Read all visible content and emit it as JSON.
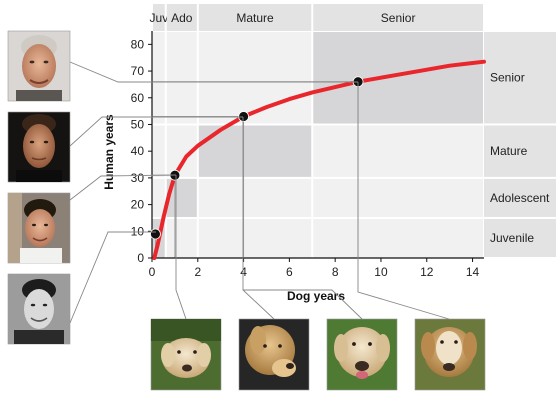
{
  "chart_data": {
    "type": "line",
    "xlabel": "Dog years",
    "ylabel": "Human years",
    "xlim": [
      0,
      14.5
    ],
    "ylim": [
      0,
      85
    ],
    "xticks": [
      0,
      2,
      4,
      6,
      8,
      10,
      12,
      14
    ],
    "yticks": [
      0,
      10,
      20,
      30,
      40,
      50,
      60,
      70,
      80
    ],
    "series": [
      {
        "color": "#e8262b",
        "points": [
          {
            "x": 0.1,
            "y": 0
          },
          {
            "x": 0.25,
            "y": 5
          },
          {
            "x": 0.5,
            "y": 15
          },
          {
            "x": 0.75,
            "y": 24
          },
          {
            "x": 1,
            "y": 31
          },
          {
            "x": 1.5,
            "y": 38
          },
          {
            "x": 2,
            "y": 42
          },
          {
            "x": 3,
            "y": 48
          },
          {
            "x": 4,
            "y": 53
          },
          {
            "x": 5,
            "y": 56.5
          },
          {
            "x": 6,
            "y": 59.5
          },
          {
            "x": 7,
            "y": 62
          },
          {
            "x": 8,
            "y": 64
          },
          {
            "x": 9,
            "y": 66
          },
          {
            "x": 10,
            "y": 67.5
          },
          {
            "x": 11,
            "y": 69
          },
          {
            "x": 12,
            "y": 70.5
          },
          {
            "x": 13,
            "y": 72
          },
          {
            "x": 14,
            "y": 73
          },
          {
            "x": 14.5,
            "y": 73.5
          }
        ]
      }
    ],
    "markers": [
      {
        "x": 0.15,
        "y": 9
      },
      {
        "x": 1,
        "y": 31
      },
      {
        "x": 4,
        "y": 53
      },
      {
        "x": 9,
        "y": 66
      }
    ],
    "dog_stages": [
      {
        "label": "Juv",
        "from": 0,
        "to": 0.6
      },
      {
        "label": "Ado",
        "from": 0.6,
        "to": 2
      },
      {
        "label": "Mature",
        "from": 2,
        "to": 7
      },
      {
        "label": "Senior",
        "from": 7,
        "to": 14.5
      }
    ],
    "human_stages": [
      {
        "label": "Juvenile",
        "from": 0,
        "to": 15
      },
      {
        "label": "Adolescent",
        "from": 15,
        "to": 30
      },
      {
        "label": "Mature",
        "from": 30,
        "to": 50
      },
      {
        "label": "Senior",
        "from": 50,
        "to": 85
      }
    ],
    "shaded_regions": [
      {
        "x": [
          0,
          0.6
        ],
        "y": [
          0,
          15
        ]
      },
      {
        "x": [
          0.6,
          2
        ],
        "y": [
          15,
          30
        ]
      },
      {
        "x": [
          2,
          7
        ],
        "y": [
          30,
          50
        ]
      },
      {
        "x": [
          7,
          14.5
        ],
        "y": [
          50,
          85
        ]
      }
    ],
    "grid": false
  },
  "photos": {
    "humans": [
      "human-photo-senior",
      "human-photo-mature",
      "human-photo-adolescent",
      "human-photo-juvenile"
    ],
    "dogs": [
      "dog-photo-juvenile",
      "dog-photo-adolescent",
      "dog-photo-mature",
      "dog-photo-senior"
    ]
  },
  "colors": {
    "curve": "#e8262b",
    "band": "#e3e3e3",
    "region": "#d6d6d9",
    "marker": "#111111"
  }
}
